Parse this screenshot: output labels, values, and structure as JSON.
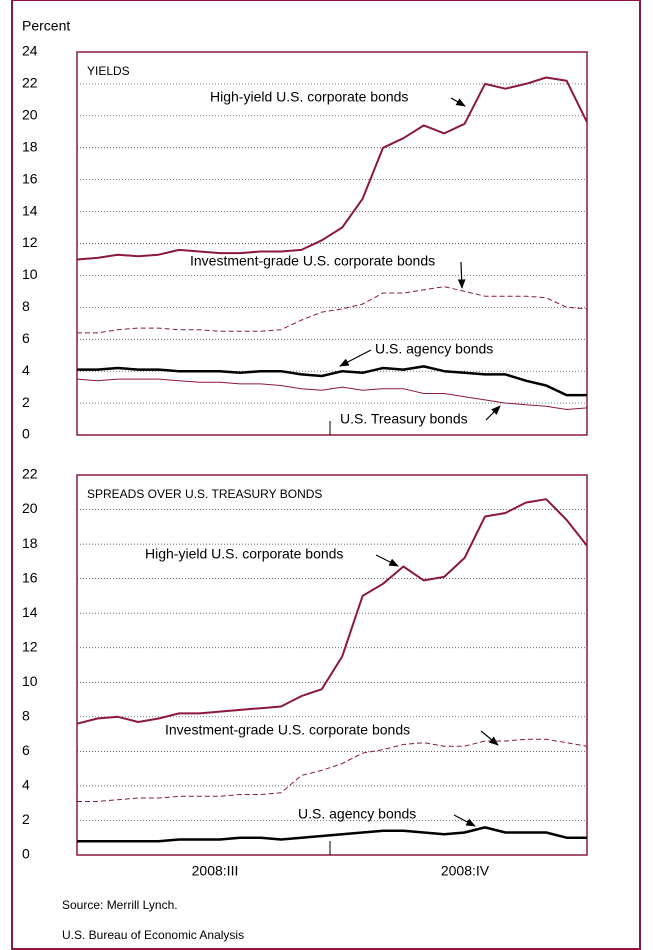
{
  "y_label": "Percent",
  "source": "Source: Merrill Lynch.",
  "credit": "U.S. Bureau of Economic Analysis",
  "chart_data": [
    {
      "type": "line",
      "title": "YIELDS",
      "ylim": [
        0,
        24
      ],
      "yticks": [
        0,
        2,
        4,
        6,
        8,
        10,
        12,
        14,
        16,
        18,
        20,
        22,
        24
      ],
      "grid": true,
      "series": [
        {
          "name": "High-yield U.S. corporate bonds",
          "color": "#8b1a3a",
          "dash": false,
          "width": 2,
          "values": [
            11.0,
            11.1,
            11.3,
            11.2,
            11.3,
            11.6,
            11.5,
            11.4,
            11.4,
            11.5,
            11.5,
            11.6,
            12.2,
            13.0,
            14.8,
            18.0,
            18.6,
            19.4,
            18.9,
            19.5,
            22.0,
            21.7,
            22.0,
            22.4,
            22.2,
            19.6
          ]
        },
        {
          "name": "Investment-grade U.S. corporate bonds",
          "color": "#8b1a3a",
          "dash": true,
          "width": 1,
          "values": [
            6.4,
            6.4,
            6.6,
            6.7,
            6.7,
            6.6,
            6.6,
            6.5,
            6.5,
            6.5,
            6.6,
            7.2,
            7.7,
            7.9,
            8.2,
            8.9,
            8.9,
            9.1,
            9.3,
            9.0,
            8.7,
            8.7,
            8.7,
            8.6,
            8.0,
            7.9
          ]
        },
        {
          "name": "U.S. agency bonds",
          "color": "#000000",
          "dash": false,
          "width": 2.5,
          "values": [
            4.1,
            4.1,
            4.2,
            4.1,
            4.1,
            4.0,
            4.0,
            4.0,
            3.9,
            4.0,
            4.0,
            3.8,
            3.7,
            4.0,
            3.9,
            4.2,
            4.1,
            4.3,
            4.0,
            3.9,
            3.8,
            3.8,
            3.4,
            3.1,
            2.5,
            2.5
          ]
        },
        {
          "name": "U.S. Treasury bonds",
          "color": "#8b1a3a",
          "dash": false,
          "width": 1,
          "values": [
            3.5,
            3.4,
            3.5,
            3.5,
            3.5,
            3.4,
            3.3,
            3.3,
            3.2,
            3.2,
            3.1,
            2.9,
            2.8,
            3.0,
            2.8,
            2.9,
            2.9,
            2.6,
            2.6,
            2.4,
            2.2,
            2.0,
            1.9,
            1.8,
            1.6,
            1.7
          ]
        }
      ]
    },
    {
      "type": "line",
      "title": "SPREADS OVER U.S. TREASURY BONDS",
      "ylim": [
        0,
        22
      ],
      "yticks": [
        0,
        2,
        4,
        6,
        8,
        10,
        12,
        14,
        16,
        18,
        20,
        22
      ],
      "grid": true,
      "quarters": [
        "2008:III",
        "2008:IV"
      ],
      "series": [
        {
          "name": "High-yield U.S. corporate bonds",
          "color": "#8b1a3a",
          "dash": false,
          "width": 2,
          "values": [
            7.6,
            7.9,
            8.0,
            7.7,
            7.9,
            8.2,
            8.2,
            8.3,
            8.4,
            8.5,
            8.6,
            9.2,
            9.6,
            11.5,
            15.0,
            15.7,
            16.7,
            15.9,
            16.1,
            17.2,
            19.6,
            19.8,
            20.4,
            20.6,
            19.4,
            17.9
          ]
        },
        {
          "name": "Investment-grade U.S. corporate bonds",
          "color": "#8b1a3a",
          "dash": true,
          "width": 1,
          "values": [
            3.1,
            3.1,
            3.2,
            3.3,
            3.3,
            3.4,
            3.4,
            3.4,
            3.5,
            3.5,
            3.6,
            4.6,
            4.9,
            5.3,
            5.9,
            6.1,
            6.4,
            6.5,
            6.3,
            6.3,
            6.6,
            6.6,
            6.7,
            6.7,
            6.5,
            6.3
          ]
        },
        {
          "name": "U.S. agency bonds",
          "color": "#000000",
          "dash": false,
          "width": 2.5,
          "values": [
            0.8,
            0.8,
            0.8,
            0.8,
            0.8,
            0.9,
            0.9,
            0.9,
            1.0,
            1.0,
            0.9,
            1.0,
            1.1,
            1.2,
            1.3,
            1.4,
            1.4,
            1.3,
            1.2,
            1.3,
            1.6,
            1.3,
            1.3,
            1.3,
            1.0,
            1.0
          ]
        }
      ]
    }
  ]
}
